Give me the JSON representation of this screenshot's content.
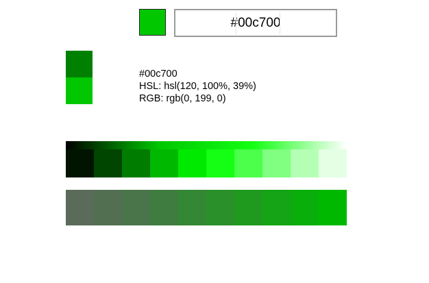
{
  "current_color": "#00c700",
  "hex_input": {
    "value": "#00c700"
  },
  "compare": {
    "top_color": "#008000",
    "bottom_color": "#00c700"
  },
  "info": {
    "hex": "#00c700",
    "hsl": "HSL: hsl(120, 100%, 39%)",
    "rgb": "RGB: rgb(0, 199, 0)"
  },
  "tints": {
    "gradient": [
      "#000000",
      "#00c700",
      "#14ff14",
      "#ffffff"
    ],
    "cells": [
      "#001400",
      "#004500",
      "#007d00",
      "#00b800",
      "#00ea00",
      "#14ff14",
      "#4bff4b",
      "#80ff80",
      "#b5ffb5",
      "#e4ffe4"
    ]
  },
  "saturation": {
    "cells": [
      "#5a6b5a",
      "#526f52",
      "#4a754a",
      "#3f7c3f",
      "#348734",
      "#2a902a",
      "#1f9a1f",
      "#15a415",
      "#0aae0a",
      "#00b800"
    ]
  }
}
